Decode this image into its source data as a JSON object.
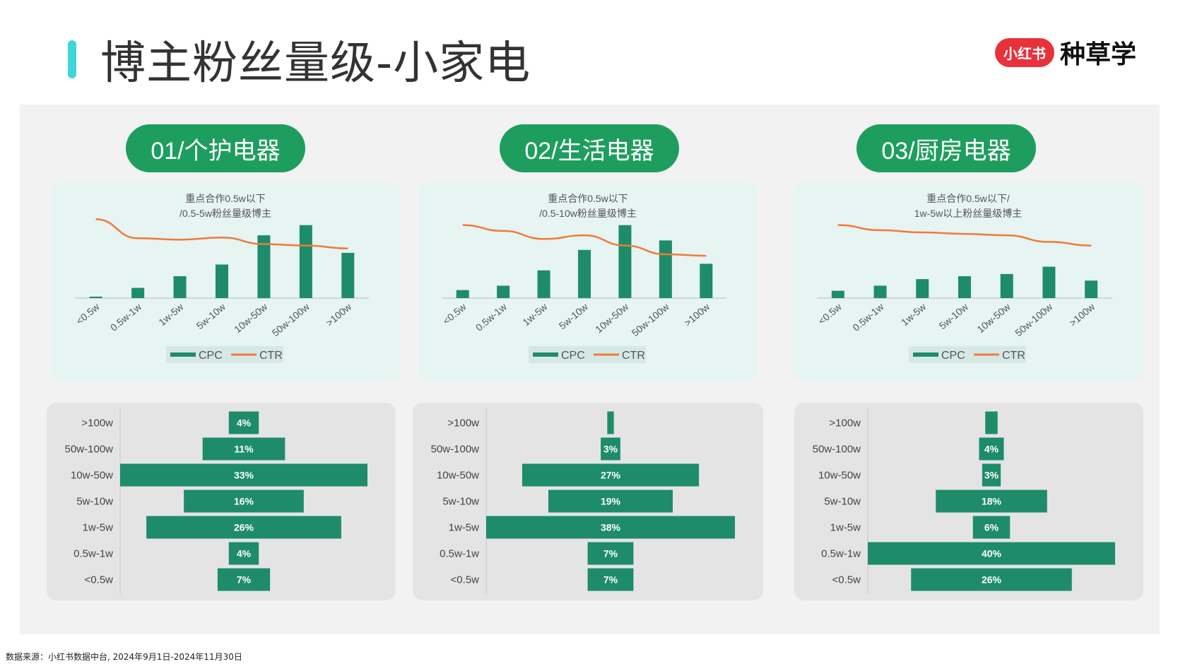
{
  "page": {
    "title": "博主粉丝量级-小家电",
    "logo": {
      "badge": "小红书",
      "text": "种草学"
    },
    "footer": "数据来源：小红书数据中台, 2024年9月1日-2024年11月30日"
  },
  "colors": {
    "green": "#1e8c6a",
    "orange": "#f07a3a",
    "pill": "#1e9e5e",
    "accent": "#3dd6d9"
  },
  "chart_data": [
    {
      "type": "bar",
      "pill": "01/个护电器",
      "note": [
        "重点合作0.5w以下",
        "/0.5-5w粉丝量级博主"
      ],
      "categories": [
        "<0.5w",
        "0.5w-1w",
        "1w-5w",
        "5w-10w",
        "10w-50w",
        "50w-100w",
        ">100w"
      ],
      "series": [
        {
          "name": "CPC",
          "kind": "bar",
          "values": [
            0.02,
            0.14,
            0.3,
            0.46,
            0.86,
            1.0,
            0.62
          ]
        },
        {
          "name": "CTR",
          "kind": "line",
          "values": [
            1.08,
            0.82,
            0.8,
            0.83,
            0.74,
            0.72,
            0.68
          ]
        }
      ],
      "ylim": [
        0,
        1.2
      ],
      "legend": "bottom",
      "pyramid": {
        "categories": [
          ">100w",
          "50w-100w",
          "10w-50w",
          "5w-10w",
          "1w-5w",
          "0.5w-1w",
          "<0.5w"
        ],
        "values": [
          4,
          11,
          33,
          16,
          26,
          4,
          7
        ],
        "labels": [
          "4%",
          "11%",
          "33%",
          "16%",
          "26%",
          "4%",
          "7%"
        ]
      }
    },
    {
      "type": "bar",
      "pill": "02/生活电器",
      "note": [
        "重点合作0.5w以下",
        "/0.5-10w粉丝量级博主"
      ],
      "categories": [
        "<0.5w",
        "0.5w-1w",
        "1w-5w",
        "5w-10w",
        "10w-50w",
        "50w-100w",
        ">100w"
      ],
      "series": [
        {
          "name": "CPC",
          "kind": "bar",
          "values": [
            0.11,
            0.17,
            0.38,
            0.66,
            1.0,
            0.79,
            0.47
          ]
        },
        {
          "name": "CTR",
          "kind": "line",
          "values": [
            1.0,
            0.92,
            0.81,
            0.86,
            0.72,
            0.6,
            0.58
          ]
        }
      ],
      "ylim": [
        0,
        1.2
      ],
      "legend": "bottom",
      "pyramid": {
        "categories": [
          ">100w",
          "50w-100w",
          "10w-50w",
          "5w-10w",
          "1w-5w",
          "0.5w-1w",
          "<0.5w"
        ],
        "values": [
          1,
          3,
          27,
          19,
          38,
          7,
          7
        ],
        "labels": [
          "",
          "3%",
          "27%",
          "19%",
          "38%",
          "7%",
          "7%"
        ]
      }
    },
    {
      "type": "bar",
      "pill": "03/厨房电器",
      "note": [
        "重点合作0.5w以下/",
        "1w-5w以上粉丝量级博主"
      ],
      "categories": [
        "<0.5w",
        "0.5w-1w",
        "1w-5w",
        "5w-10w",
        "10w-50w",
        "50w-100w",
        ">100w"
      ],
      "series": [
        {
          "name": "CPC",
          "kind": "bar",
          "values": [
            0.1,
            0.17,
            0.26,
            0.3,
            0.33,
            0.43,
            0.24
          ]
        },
        {
          "name": "CTR",
          "kind": "line",
          "values": [
            1.0,
            0.93,
            0.9,
            0.88,
            0.86,
            0.77,
            0.72
          ]
        }
      ],
      "ylim": [
        0,
        1.2
      ],
      "legend": "bottom",
      "pyramid": {
        "categories": [
          ">100w",
          "50w-100w",
          "10w-50w",
          "5w-10w",
          "1w-5w",
          "0.5w-1w",
          "<0.5w"
        ],
        "values": [
          2,
          4,
          3,
          18,
          6,
          40,
          26
        ],
        "labels": [
          "",
          "4%",
          "3%",
          "18%",
          "6%",
          "40%",
          "26%"
        ]
      }
    }
  ]
}
